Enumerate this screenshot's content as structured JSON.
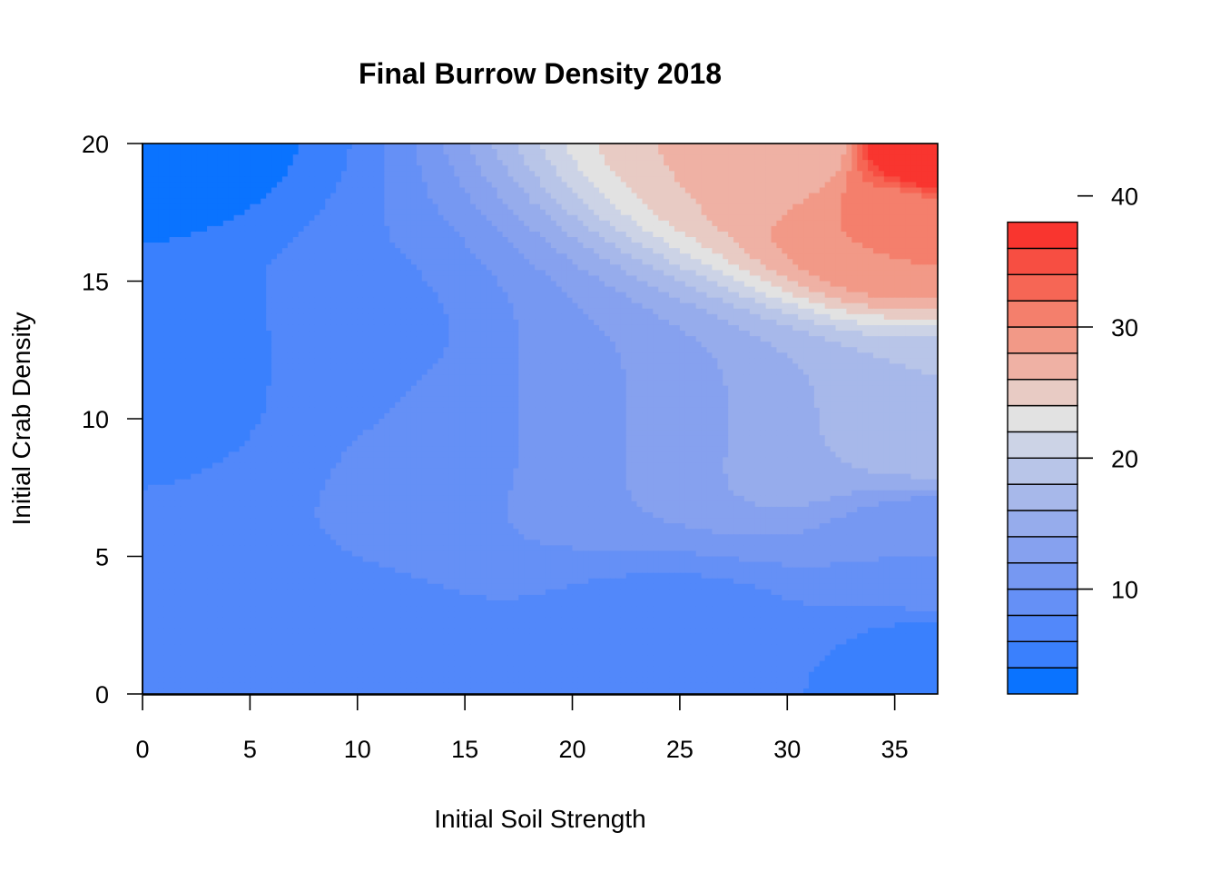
{
  "chart_data": {
    "type": "heatmap",
    "subtype": "filled-contour",
    "title": "Final Burrow Density 2018",
    "xlabel": "Initial Soil Strength",
    "ylabel": "Initial Crab Density",
    "xlim": [
      0,
      37
    ],
    "ylim": [
      0,
      20
    ],
    "x_ticks": [
      "0",
      "5",
      "10",
      "15",
      "20",
      "25",
      "30",
      "35"
    ],
    "y_ticks": [
      "0",
      "5",
      "10",
      "15",
      "20"
    ],
    "colorbar": {
      "range": [
        2,
        44
      ],
      "level_step": 2,
      "ticks": [
        "10",
        "20",
        "30",
        "40"
      ],
      "colors": [
        "#0a73ff",
        "#3a80fd",
        "#5288fa",
        "#6590f6",
        "#7698f2",
        "#86a1ef",
        "#96acec",
        "#a7b8ea",
        "#b8c5e8",
        "#ccd3e6",
        "#e2e2e2",
        "#e8cbc4",
        "#efb1a4",
        "#f29987",
        "#f47f6c",
        "#f66655",
        "#f74e42",
        "#f9352f"
      ]
    },
    "surface_samples": [
      {
        "x": 0,
        "y": 20,
        "z": 3
      },
      {
        "x": 0,
        "y": 0,
        "z": 6
      },
      {
        "x": 2,
        "y": 12,
        "z": 5
      },
      {
        "x": 10,
        "y": 12,
        "z": 7
      },
      {
        "x": 10,
        "y": 0,
        "z": 7
      },
      {
        "x": 15,
        "y": 10,
        "z": 9
      },
      {
        "x": 20,
        "y": 10,
        "z": 11
      },
      {
        "x": 25,
        "y": 10,
        "z": 13
      },
      {
        "x": 30,
        "y": 10,
        "z": 16
      },
      {
        "x": 37,
        "y": 10,
        "z": 18
      },
      {
        "x": 37,
        "y": 5,
        "z": 10
      },
      {
        "x": 37,
        "y": 1,
        "z": 5
      },
      {
        "x": 25,
        "y": 1,
        "z": 6
      },
      {
        "x": 30,
        "y": 20,
        "z": 26
      },
      {
        "x": 35,
        "y": 17,
        "z": 30
      },
      {
        "x": 37,
        "y": 20,
        "z": 42
      }
    ]
  }
}
